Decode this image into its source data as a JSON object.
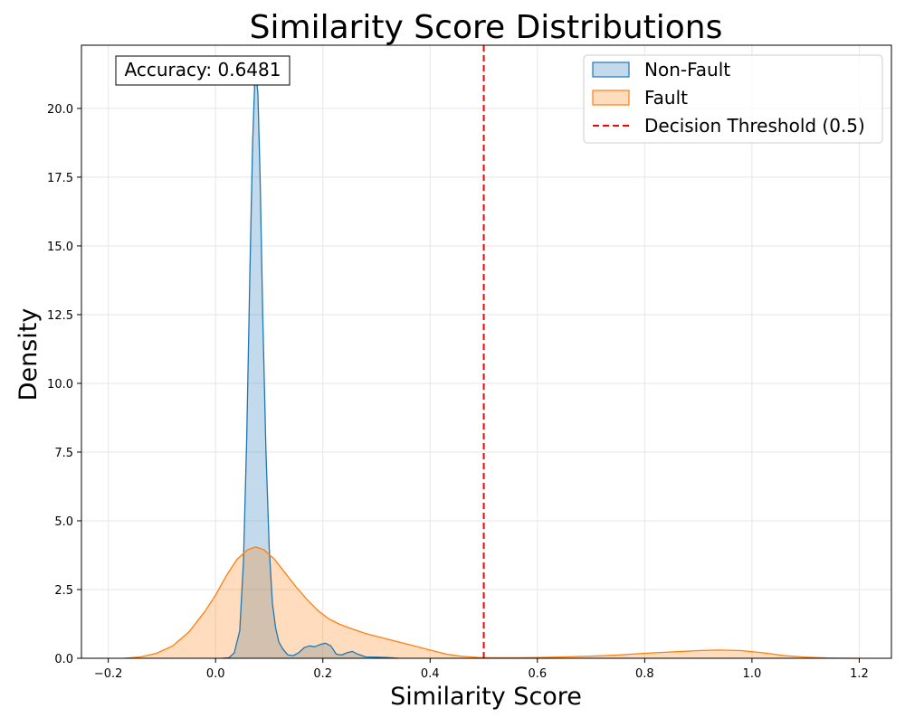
{
  "chart_data": {
    "type": "area",
    "title": "Similarity Score Distributions",
    "xlabel": "Similarity Score",
    "ylabel": "Density",
    "xlim": [
      -0.25,
      1.26
    ],
    "ylim": [
      0,
      22.3
    ],
    "x_ticks": [
      -0.2,
      0.0,
      0.2,
      0.4,
      0.6,
      0.8,
      1.0,
      1.2
    ],
    "x_tick_labels": [
      "−0.2",
      "0.0",
      "0.2",
      "0.4",
      "0.6",
      "0.8",
      "1.0",
      "1.2"
    ],
    "y_ticks": [
      0.0,
      2.5,
      5.0,
      7.5,
      10.0,
      12.5,
      15.0,
      17.5,
      20.0
    ],
    "y_tick_labels": [
      "0.0",
      "2.5",
      "5.0",
      "7.5",
      "10.0",
      "12.5",
      "15.0",
      "17.5",
      "20.0"
    ],
    "grid": true,
    "legend_position": "top-right",
    "annotation": "Accuracy: 0.6481",
    "series": [
      {
        "name": "Non-Fault",
        "color": "#1f77b4",
        "fill_color": "#1f77b4",
        "fill_opacity": 0.27,
        "x": [
          0.012,
          0.025,
          0.035,
          0.045,
          0.052,
          0.058,
          0.064,
          0.069,
          0.073,
          0.076,
          0.079,
          0.083,
          0.088,
          0.094,
          0.1,
          0.106,
          0.112,
          0.118,
          0.125,
          0.135,
          0.145,
          0.155,
          0.165,
          0.175,
          0.185,
          0.195,
          0.205,
          0.215,
          0.225,
          0.235,
          0.245,
          0.255,
          0.265,
          0.28,
          0.3,
          0.32,
          0.34
        ],
        "y": [
          0.0,
          0.02,
          0.2,
          1.0,
          3.5,
          8.0,
          14.0,
          18.7,
          20.9,
          21.2,
          20.5,
          17.5,
          12.5,
          7.5,
          4.0,
          2.0,
          1.1,
          0.6,
          0.35,
          0.12,
          0.1,
          0.2,
          0.38,
          0.45,
          0.42,
          0.5,
          0.55,
          0.45,
          0.15,
          0.12,
          0.2,
          0.25,
          0.15,
          0.05,
          0.04,
          0.03,
          0.0
        ]
      },
      {
        "name": "Fault",
        "color": "#ff7f0e",
        "fill_color": "#ff7f0e",
        "fill_opacity": 0.27,
        "x": [
          -0.17,
          -0.14,
          -0.11,
          -0.08,
          -0.05,
          -0.02,
          0.0,
          0.02,
          0.04,
          0.06,
          0.075,
          0.09,
          0.11,
          0.13,
          0.15,
          0.17,
          0.19,
          0.21,
          0.23,
          0.25,
          0.28,
          0.31,
          0.34,
          0.37,
          0.4,
          0.43,
          0.46,
          0.49,
          0.52,
          0.56,
          0.6,
          0.65,
          0.7,
          0.75,
          0.8,
          0.85,
          0.9,
          0.94,
          0.98,
          1.02,
          1.06,
          1.1,
          1.14,
          1.18,
          1.2
        ],
        "y": [
          0.0,
          0.05,
          0.18,
          0.45,
          0.95,
          1.7,
          2.3,
          3.0,
          3.6,
          3.95,
          4.05,
          3.95,
          3.6,
          3.1,
          2.6,
          2.15,
          1.75,
          1.45,
          1.25,
          1.1,
          0.9,
          0.75,
          0.6,
          0.45,
          0.3,
          0.15,
          0.07,
          0.03,
          0.02,
          0.02,
          0.03,
          0.05,
          0.08,
          0.12,
          0.18,
          0.23,
          0.28,
          0.3,
          0.28,
          0.2,
          0.1,
          0.04,
          0.01,
          0.0,
          0.0
        ]
      }
    ],
    "threshold": {
      "label": "Decision Threshold (0.5)",
      "x": 0.5,
      "color": "#ff0000"
    }
  }
}
